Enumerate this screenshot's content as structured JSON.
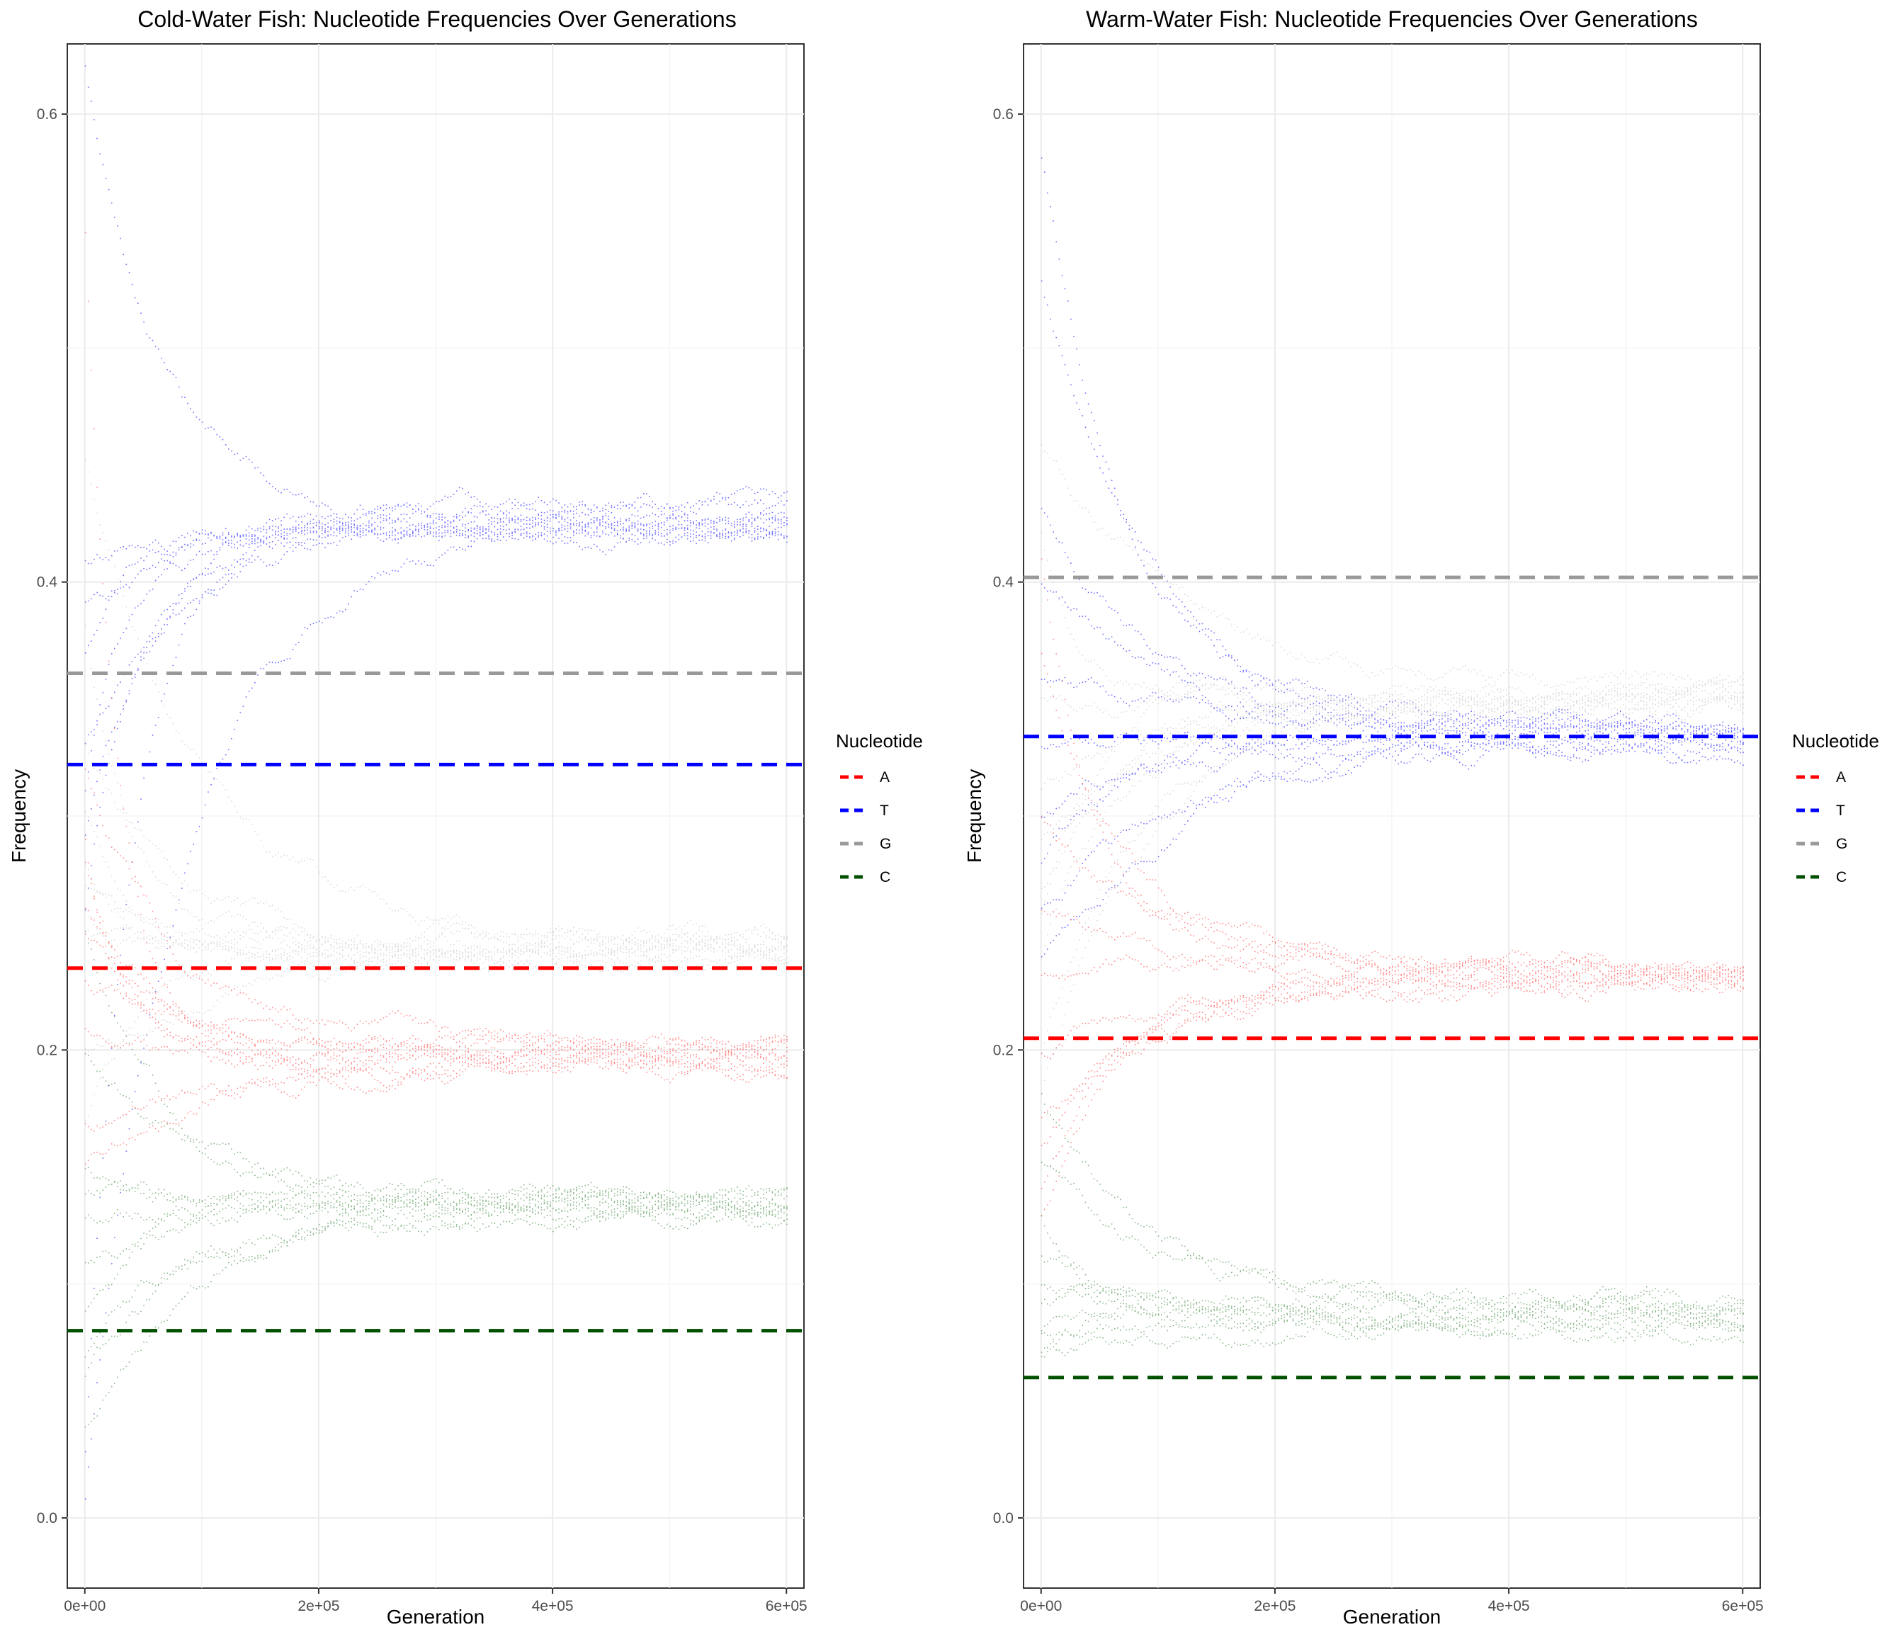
{
  "chart_data": [
    {
      "type": "scatter",
      "title": "Cold-Water Fish: Nucleotide Frequencies Over Generations",
      "xlabel": "Generation",
      "ylabel": "Frequency",
      "xlim": [
        -15000,
        615000
      ],
      "ylim": [
        -0.03,
        0.63
      ],
      "x_ticks": [
        0,
        200000,
        400000,
        600000
      ],
      "x_tick_labels": [
        "0e+00",
        "2e+05",
        "4e+05",
        "6e+05"
      ],
      "y_ticks": [
        0.0,
        0.2,
        0.4,
        0.6
      ],
      "y_tick_labels": [
        "0.0",
        "0.2",
        "0.4",
        "0.6"
      ],
      "grid": true,
      "legend": {
        "title": "Nucleotide",
        "position": "right",
        "entries": [
          {
            "label": "A",
            "color": "#ff0000"
          },
          {
            "label": "T",
            "color": "#0000ff"
          },
          {
            "label": "G",
            "color": "#999999"
          },
          {
            "label": "C",
            "color": "#005000"
          }
        ]
      },
      "reference_lines": [
        {
          "nucleotide": "A",
          "y": 0.235,
          "color": "#ff0000"
        },
        {
          "nucleotide": "T",
          "y": 0.322,
          "color": "#0000ff"
        },
        {
          "nucleotide": "G",
          "y": 0.361,
          "color": "#999999"
        },
        {
          "nucleotide": "C",
          "y": 0.08,
          "color": "#005000"
        }
      ],
      "series": [
        {
          "nucleotide": "T",
          "color": "#0000ff",
          "end_level": 0.427,
          "start_values": [
            0.62,
            0.41,
            0.39,
            0.37,
            0.33,
            0.31,
            0.29,
            0.26,
            0.03,
            0.01
          ]
        },
        {
          "nucleotide": "G",
          "color": "#bdbdbd",
          "end_level": 0.245,
          "start_values": [
            0.45,
            0.38,
            0.33,
            0.3,
            0.28,
            0.27,
            0.26,
            0.25,
            0.2,
            0.17
          ]
        },
        {
          "nucleotide": "A",
          "color": "#ff3030",
          "end_level": 0.197,
          "start_values": [
            0.55,
            0.32,
            0.29,
            0.28,
            0.26,
            0.25,
            0.23,
            0.21,
            0.17,
            0.15
          ]
        },
        {
          "nucleotide": "C",
          "color": "#2e7d2e",
          "end_level": 0.133,
          "start_values": [
            0.25,
            0.2,
            0.15,
            0.14,
            0.13,
            0.11,
            0.09,
            0.07,
            0.06,
            0.04
          ]
        }
      ]
    },
    {
      "type": "scatter",
      "title": "Warm-Water Fish: Nucleotide Frequencies Over Generations",
      "xlabel": "Generation",
      "ylabel": "Frequency",
      "xlim": [
        -15000,
        615000
      ],
      "ylim": [
        -0.03,
        0.63
      ],
      "x_ticks": [
        0,
        200000,
        400000,
        600000
      ],
      "x_tick_labels": [
        "0e+00",
        "2e+05",
        "4e+05",
        "6e+05"
      ],
      "y_ticks": [
        0.0,
        0.2,
        0.4,
        0.6
      ],
      "y_tick_labels": [
        "0.0",
        "0.2",
        "0.4",
        "0.6"
      ],
      "grid": true,
      "legend": {
        "title": "Nucleotide",
        "position": "right",
        "entries": [
          {
            "label": "A",
            "color": "#ff0000"
          },
          {
            "label": "T",
            "color": "#0000ff"
          },
          {
            "label": "G",
            "color": "#999999"
          },
          {
            "label": "C",
            "color": "#005000"
          }
        ]
      },
      "reference_lines": [
        {
          "nucleotide": "A",
          "y": 0.205,
          "color": "#ff0000"
        },
        {
          "nucleotide": "T",
          "y": 0.334,
          "color": "#0000ff"
        },
        {
          "nucleotide": "G",
          "y": 0.402,
          "color": "#999999"
        },
        {
          "nucleotide": "C",
          "y": 0.06,
          "color": "#005000"
        }
      ],
      "series": [
        {
          "nucleotide": "T",
          "color": "#0000ff",
          "end_level": 0.335,
          "start_values": [
            0.58,
            0.53,
            0.43,
            0.4,
            0.36,
            0.33,
            0.3,
            0.28,
            0.26,
            0.24
          ]
        },
        {
          "nucleotide": "G",
          "color": "#bdbdbd",
          "end_level": 0.352,
          "start_values": [
            0.46,
            0.42,
            0.35,
            0.31,
            0.29,
            0.27,
            0.26,
            0.24,
            0.2,
            0.18
          ]
        },
        {
          "nucleotide": "A",
          "color": "#ff3030",
          "end_level": 0.233,
          "start_values": [
            0.41,
            0.37,
            0.3,
            0.26,
            0.23,
            0.2,
            0.17,
            0.16,
            0.14,
            0.13
          ]
        },
        {
          "nucleotide": "C",
          "color": "#2e7d2e",
          "end_level": 0.087,
          "start_values": [
            0.18,
            0.15,
            0.13,
            0.11,
            0.1,
            0.09,
            0.08,
            0.08,
            0.07,
            0.07
          ]
        }
      ]
    }
  ]
}
